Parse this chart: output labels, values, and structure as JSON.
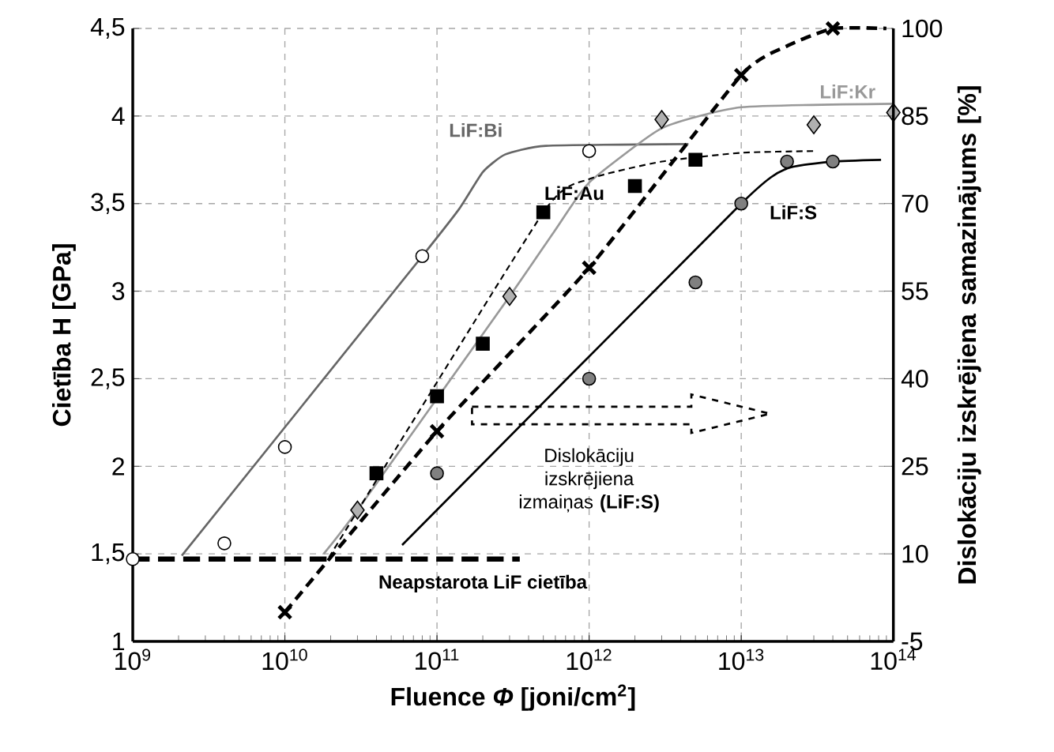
{
  "chart_data": {
    "type": "scatter",
    "xlabel": "Fluence *Φ* [joni/cm$^{2}$]",
    "ylabel": "Cietība H [GPa]",
    "y2label": "Dislokāciju izskrējiena samazinājums [%]",
    "log": "x",
    "grid": true,
    "xlim": [
      1000000000.0,
      100000000000000.0
    ],
    "xticks": [
      {
        "value": 1000000000.0,
        "label": "10$^{9}$"
      },
      {
        "value": 10000000000.0,
        "label": "10$^{10}$"
      },
      {
        "value": 100000000000.0,
        "label": "10$^{11}$"
      },
      {
        "value": 1000000000000.0,
        "label": "10$^{12}$"
      },
      {
        "value": 10000000000000.0,
        "label": "10$^{13}$"
      },
      {
        "value": 100000000000000.0,
        "label": "10$^{14}$"
      }
    ],
    "ylim": [
      1,
      4.5
    ],
    "yticks": [
      1,
      {
        "value": 1.5,
        "label": "1,5"
      },
      2,
      {
        "value": 2.5,
        "label": "2,5"
      },
      3,
      {
        "value": 3.5,
        "label": "3,5"
      },
      4,
      {
        "value": 4.5,
        "label": "4,5"
      }
    ],
    "y2lim": [
      -5,
      100
    ],
    "y2ticks": [
      -5,
      10,
      25,
      40,
      55,
      70,
      85,
      100
    ],
    "series": [
      {
        "name": "LiF:Bi",
        "type": "line",
        "color": "#666666",
        "line_style": "solid",
        "x": [
          2100000000.0,
          80000000000.0,
          140000000000.0,
          200000000000.0,
          280000000000.0,
          520000000000.0,
          4500000000000.0
        ],
        "values": [
          1.49,
          3.2,
          3.47,
          3.68,
          3.78,
          3.83,
          3.84
        ]
      },
      {
        "marker": "circle",
        "color": "#ffffff",
        "x": [
          1000000000.0,
          4000000000.0,
          10000000000.0,
          80000000000.0,
          1000000000000.0
        ],
        "values": [
          1.47,
          1.56,
          2.11,
          3.2,
          3.8
        ]
      },
      {
        "name": "LiF:Kr",
        "type": "line",
        "color": "#999999",
        "line_style": "solid",
        "x": [
          18000000000.0,
          30000000000.0,
          300000000000.0,
          600000000000.0,
          1000000000000.0,
          3000000000000.0,
          10000000000000.0,
          100000000000000.0
        ],
        "values": [
          1.5,
          1.75,
          2.97,
          3.35,
          3.62,
          3.93,
          4.05,
          4.07
        ]
      },
      {
        "marker": "diamond",
        "color": "#b0b0b0",
        "x": [
          30000000000.0,
          300000000000.0,
          3000000000000.0,
          30000000000000.0,
          100000000000000.0
        ],
        "values": [
          1.75,
          2.97,
          3.98,
          3.95,
          4.02
        ]
      },
      {
        "name": "LiF:Au",
        "type": "line",
        "color": "#000000",
        "line_style": "dashed",
        "x": [
          19500000000.0,
          500000000000.0,
          1000000000000.0,
          3000000000000.0,
          10000000000000.0,
          30000000000000.0
        ],
        "values": [
          1.48,
          3.45,
          3.64,
          3.74,
          3.79,
          3.8
        ]
      },
      {
        "marker": "square",
        "color": "#000000",
        "x": [
          40000000000.0,
          100000000000.0,
          200000000000.0,
          500000000000.0,
          2000000000000.0,
          5000000000000.0
        ],
        "values": [
          1.96,
          2.4,
          2.7,
          3.45,
          3.6,
          3.75
        ]
      },
      {
        "name": "LiF:S",
        "type": "line",
        "color": "#000000",
        "line_style": "solid",
        "x": [
          59000000000.0,
          10000000000000.0,
          20000000000000.0,
          40000000000000.0,
          83000000000000.0
        ],
        "values": [
          1.55,
          3.5,
          3.7,
          3.74,
          3.75
        ]
      },
      {
        "marker": "circle",
        "color": "#808080",
        "x": [
          100000000000.0,
          1000000000000.0,
          5000000000000.0,
          10000000000000.0,
          20000000000000.0,
          40000000000000.0
        ],
        "values": [
          1.96,
          2.5,
          3.05,
          3.5,
          3.74,
          3.74
        ]
      },
      {
        "type": "line",
        "axis": "y2",
        "color": "#000000",
        "line_style": "dashed",
        "x": [
          10000000000.0,
          100000000000.0,
          1000000000000.0,
          10000000000000.0,
          20000000000000.0,
          40000000000000.0,
          90000000000000.0
        ],
        "values": [
          0,
          31,
          59,
          92,
          97,
          100,
          100
        ]
      },
      {
        "axis": "y2",
        "marker": "cross",
        "color": "#000000",
        "x": [
          10000000000.0,
          100000000000.0,
          1000000000000.0,
          10000000000000.0,
          40000000000000.0
        ],
        "values": [
          0,
          31,
          59,
          92,
          100
        ]
      },
      {
        "name": "Neapstarota LiF cietība",
        "type": "line",
        "color": "#000000",
        "line_style": "dashed",
        "x": [
          1000000000.0,
          350000000000.0
        ],
        "values": [
          1.47,
          1.47
        ]
      }
    ],
    "annotations": [
      "Dislokāciju izskrējiena izmaiņas **(LiF:S)**"
    ]
  }
}
